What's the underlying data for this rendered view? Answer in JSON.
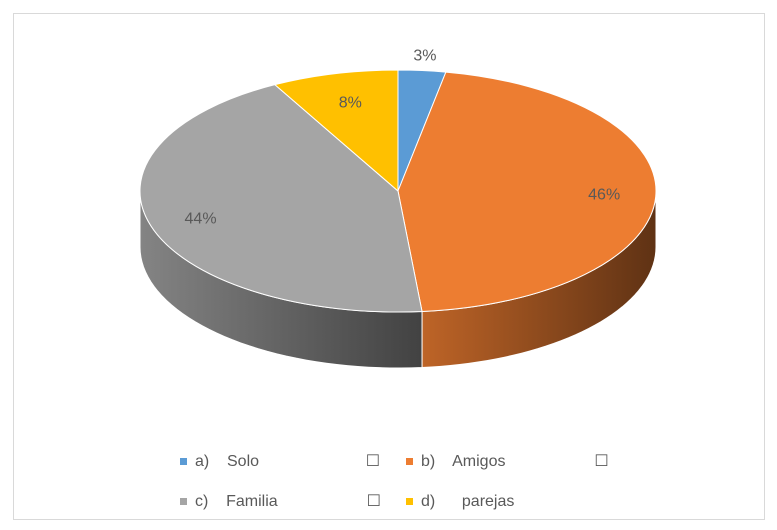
{
  "chart_data": {
    "type": "pie",
    "categories": [
      "a)    Solo                        ☐",
      "b)    Amigos                    ☐",
      "c)    Familia                    ☐",
      "d)      parejas"
    ],
    "values": [
      3,
      46,
      44,
      8
    ],
    "value_labels": [
      "3%",
      "46%",
      "44%",
      "8%"
    ],
    "colors": [
      "#5b9bd5",
      "#ed7d31",
      "#a5a5a5",
      "#ffc000"
    ],
    "legend": "bottom"
  }
}
